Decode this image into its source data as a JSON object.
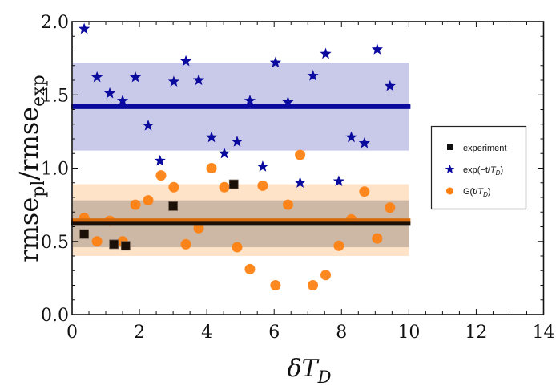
{
  "chart_data": {
    "type": "scatter",
    "title": "",
    "xlabel": "δT_D",
    "xlabel_parts": {
      "main": "δT",
      "sub": "D"
    },
    "ylabel": "rmse_pl/rmse_exp",
    "ylabel_parts": {
      "a": "rmse",
      "a_sub": "pl",
      "sep": "/",
      "b": "rmse",
      "b_sub": "exp"
    },
    "xlim": [
      0,
      14
    ],
    "ylim": [
      0.0,
      2.0
    ],
    "x_ticks": [
      0,
      2,
      4,
      6,
      8,
      10,
      12,
      14
    ],
    "x_tick_labels": [
      "0",
      "2",
      "4",
      "6",
      "8",
      "10",
      "12",
      "14"
    ],
    "x_minor_step": 0.5,
    "y_ticks": [
      0.0,
      0.5,
      1.0,
      1.5,
      2.0
    ],
    "y_tick_labels": [
      "0.0",
      "0.5",
      "1.0",
      "1.5",
      "2.0"
    ],
    "y_minor_step": 0.1,
    "grid": false,
    "legend_position": "right",
    "series": [
      {
        "name": "experiment",
        "marker": "square",
        "color": "#1a1008",
        "mean": 0.62,
        "x": [
          0.36,
          1.24,
          1.59,
          3.0,
          4.8
        ],
        "y": [
          0.55,
          0.48,
          0.47,
          0.74,
          0.89
        ]
      },
      {
        "name": "exp(−t/T_D)",
        "legend_parts": {
          "pre": "exp(−t/",
          "it": "T",
          "sub": "D",
          "post": ")"
        },
        "marker": "star",
        "color": "#0a0a9e",
        "mean": 1.42,
        "band": [
          1.12,
          1.72
        ],
        "band_color": "#c9c9ea",
        "x": [
          0.36,
          0.74,
          1.12,
          1.5,
          1.88,
          2.26,
          2.61,
          3.02,
          3.38,
          3.76,
          4.14,
          4.52,
          4.9,
          5.28,
          5.66,
          6.04,
          6.41,
          6.77,
          7.15,
          7.53,
          7.92,
          8.29,
          8.68,
          9.06,
          9.44
        ],
        "y": [
          1.95,
          1.62,
          1.51,
          1.46,
          1.62,
          1.29,
          1.05,
          1.59,
          1.73,
          1.6,
          1.21,
          1.1,
          1.18,
          1.46,
          1.01,
          1.72,
          1.45,
          0.9,
          1.63,
          1.78,
          0.91,
          1.21,
          1.17,
          1.81,
          1.56
        ]
      },
      {
        "name": "G(t/T_D)",
        "legend_parts": {
          "pre": "G(t/",
          "it": "T",
          "sub": "D",
          "post": ")"
        },
        "marker": "circle",
        "color": "#ff7f0e",
        "mean": 0.64,
        "band": [
          0.4,
          0.89
        ],
        "band_color": "#ffe3c8",
        "x": [
          0.36,
          0.74,
          1.12,
          1.5,
          1.88,
          2.26,
          2.64,
          3.02,
          3.38,
          3.76,
          4.14,
          4.52,
          4.9,
          5.28,
          5.66,
          6.04,
          6.41,
          6.77,
          7.15,
          7.53,
          7.92,
          8.29,
          8.68,
          9.06,
          9.44
        ],
        "y": [
          0.66,
          0.5,
          0.64,
          0.5,
          0.75,
          0.78,
          0.95,
          0.87,
          0.48,
          0.59,
          1.0,
          0.87,
          0.46,
          0.31,
          0.88,
          0.2,
          0.75,
          1.09,
          0.2,
          0.27,
          0.47,
          0.65,
          0.84,
          0.52,
          0.73
        ]
      }
    ],
    "overlap_band": {
      "range": [
        0.46,
        0.78
      ],
      "color": "#cdb8a6"
    },
    "band_x_range": [
      0,
      10
    ]
  }
}
